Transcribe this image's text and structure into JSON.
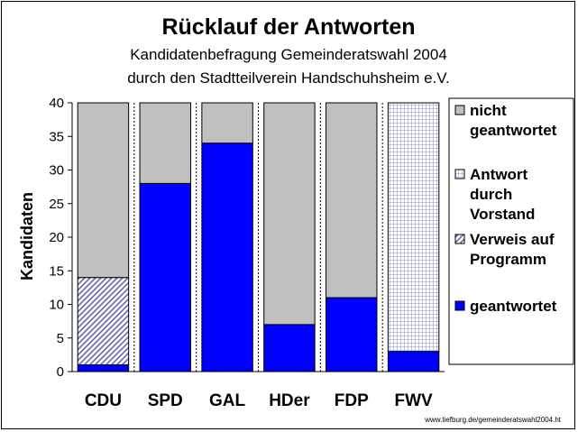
{
  "chart_data": {
    "type": "bar",
    "stacked": true,
    "title": "Rücklauf der Antworten",
    "subtitle": [
      "Kandidatenbefragung Gemeinderatswahl 2004",
      "durch den Stadtteilverein Handschuhsheim e.V."
    ],
    "ylabel": "Kandidaten",
    "xlabel": "",
    "ylim": [
      0,
      40
    ],
    "yticks": [
      0,
      5,
      10,
      15,
      20,
      25,
      30,
      35,
      40
    ],
    "categories": [
      "CDU",
      "SPD",
      "GAL",
      "HDer",
      "FDP",
      "FWV"
    ],
    "series": [
      {
        "name": "geantwortet",
        "values": [
          1,
          28,
          34,
          7,
          11,
          3
        ],
        "color": "#0000ff",
        "pattern": "solid"
      },
      {
        "name": "Verweis auf Programm",
        "values": [
          13,
          0,
          0,
          0,
          0,
          0
        ],
        "color": "#9999cc",
        "pattern": "diagonal"
      },
      {
        "name": "Antwort durch Vorstand",
        "values": [
          0,
          0,
          0,
          0,
          0,
          37
        ],
        "color": "#ccccff",
        "pattern": "grid"
      },
      {
        "name": "nicht geantwortet",
        "values": [
          26,
          12,
          6,
          33,
          29,
          0
        ],
        "color": "#c0c0c0",
        "pattern": "solid"
      }
    ],
    "legend": {
      "placement": "right",
      "entries": [
        {
          "series": "nicht geantwortet",
          "lines": [
            "nicht",
            "geantwortet"
          ]
        },
        {
          "series": "Antwort durch Vorstand",
          "lines": [
            "Antwort",
            "durch",
            "Vorstand"
          ]
        },
        {
          "series": "Verweis auf Programm",
          "lines": [
            "Verweis auf",
            "Programm"
          ]
        },
        {
          "series": "geantwortet",
          "lines": [
            "geantwortet"
          ]
        }
      ]
    },
    "grid": false,
    "source_note": "www.tiefburg.de/gemeinderatswahl2004.ht"
  }
}
